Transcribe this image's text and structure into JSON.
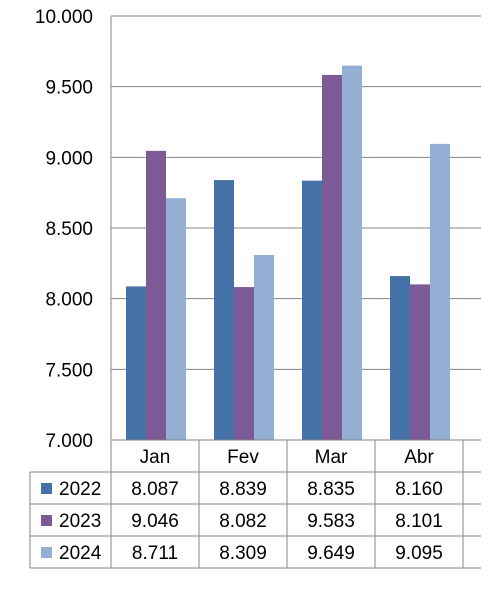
{
  "chart_data": {
    "type": "bar",
    "categories": [
      "Jan",
      "Fev",
      "Mar",
      "Abr"
    ],
    "series": [
      {
        "name": "2022",
        "values": [
          8087,
          8839,
          8835,
          8160
        ],
        "color": "#4472a8"
      },
      {
        "name": "2023",
        "values": [
          9046,
          8082,
          9583,
          8101
        ],
        "color": "#7b5a96"
      },
      {
        "name": "2024",
        "values": [
          8711,
          8309,
          9649,
          9095
        ],
        "color": "#95aed4"
      }
    ],
    "table": [
      [
        "8.087",
        "8.839",
        "8.835",
        "8.160"
      ],
      [
        "9.046",
        "8.082",
        "9.583",
        "8.101"
      ],
      [
        "8.711",
        "8.309",
        "9.649",
        "9.095"
      ]
    ],
    "ylim": [
      7000,
      10000
    ],
    "yticks": [
      {
        "value": 10000,
        "label": "10.000"
      },
      {
        "value": 9500,
        "label": "9.500"
      },
      {
        "value": 9000,
        "label": "9.000"
      },
      {
        "value": 8500,
        "label": "8.500"
      },
      {
        "value": 8000,
        "label": "8.000"
      },
      {
        "value": 7500,
        "label": "7.500"
      },
      {
        "value": 7000,
        "label": "7.000"
      }
    ],
    "grid": true,
    "legend": "data-table"
  }
}
